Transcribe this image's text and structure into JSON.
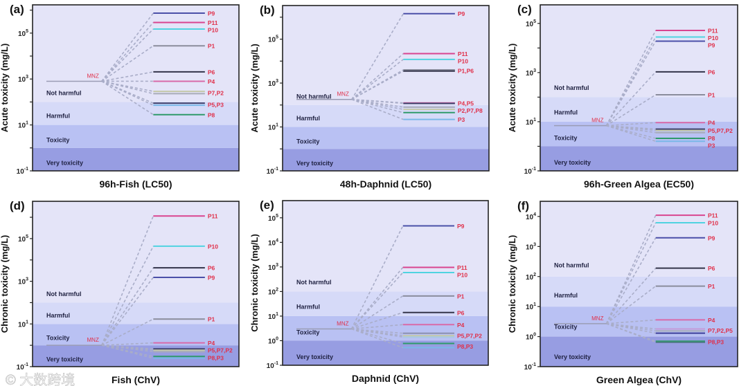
{
  "band_labels": [
    "Very toxicity",
    "Toxicity",
    "Harmful",
    "Not harmful"
  ],
  "band_colors": [
    "#979de2",
    "#b9c1f3",
    "#d6daf8",
    "#e4e4f8"
  ],
  "label_color": "#e0304a",
  "watermark": "大数跨境",
  "chart_data": [
    {
      "type": "line",
      "panel": "(a)",
      "title": "96h-Fish (LC50)",
      "ylabel": "Acute toxicity (mg/L)",
      "yscale": "log",
      "ylim": [
        0.1,
        1700000
      ],
      "ytick_exponents": [
        -1,
        1,
        3,
        5
      ],
      "band_thresholds": [
        1,
        10,
        100
      ],
      "parent": {
        "name": "MNZ",
        "value": 800
      },
      "products": [
        {
          "name": "P9",
          "value": 740000,
          "color": "#4a4fa8"
        },
        {
          "name": "P11",
          "value": 290000,
          "color": "#d9448f"
        },
        {
          "name": "P10",
          "value": 150000,
          "color": "#4fd3e0"
        },
        {
          "name": "P1",
          "value": 28000,
          "color": "#8a8c9c"
        },
        {
          "name": "P6",
          "value": 2050,
          "color": "#33344a"
        },
        {
          "name": "P4",
          "value": 800,
          "color": "#d96aa8"
        },
        {
          "name": "P7",
          "value": 290,
          "color": "#c4c8a8"
        },
        {
          "name": "P2",
          "value": 230,
          "color": "#a8acb8"
        },
        {
          "name": "P5",
          "value": 89,
          "color": "#3d3f6a"
        },
        {
          "name": "P3",
          "value": 72,
          "color": "#7ab8e8"
        },
        {
          "name": "P8",
          "value": 28,
          "color": "#2e9a6a"
        }
      ],
      "labels": [
        {
          "text": "P9",
          "value": 740000
        },
        {
          "text": "P11",
          "value": 290000
        },
        {
          "text": "P10",
          "value": 150000
        },
        {
          "text": "P1",
          "value": 28000
        },
        {
          "text": "P6",
          "value": 2050
        },
        {
          "text": "P4",
          "value": 800
        },
        {
          "text": "P7,P2",
          "value": 250
        },
        {
          "text": "P5,P3",
          "value": 78
        },
        {
          "text": "P8",
          "value": 28
        }
      ]
    },
    {
      "type": "line",
      "panel": "(b)",
      "title": "48h-Daphnid (LC50)",
      "ylabel": "Acute toxicity (mg/L)",
      "yscale": "log",
      "ylim": [
        0.1,
        3400000
      ],
      "ytick_exponents": [
        -1,
        1,
        3,
        5
      ],
      "band_thresholds": [
        1,
        10,
        100
      ],
      "parent": {
        "name": "MNZ",
        "value": 180
      },
      "products": [
        {
          "name": "P9",
          "value": 1450000,
          "color": "#4a4fa8"
        },
        {
          "name": "P11",
          "value": 22000,
          "color": "#d9448f"
        },
        {
          "name": "P10",
          "value": 12000,
          "color": "#4fd3e0"
        },
        {
          "name": "P1",
          "value": 4000,
          "color": "#8a8c9c"
        },
        {
          "name": "P6",
          "value": 3500,
          "color": "#33344a"
        },
        {
          "name": "P4",
          "value": 125,
          "color": "#d96aa8"
        },
        {
          "name": "P5",
          "value": 118,
          "color": "#3d3f6a"
        },
        {
          "name": "P2",
          "value": 80,
          "color": "#a8acb8"
        },
        {
          "name": "P7",
          "value": 63,
          "color": "#c4c8a8"
        },
        {
          "name": "P8",
          "value": 45,
          "color": "#2e9a6a"
        },
        {
          "name": "P3",
          "value": 22,
          "color": "#7ab8e8"
        }
      ],
      "labels": [
        {
          "text": "P9",
          "value": 1450000
        },
        {
          "text": "P11",
          "value": 22000
        },
        {
          "text": "P10",
          "value": 12000
        },
        {
          "text": "P1,P6",
          "value": 3700
        },
        {
          "text": "P4,P5",
          "value": 122
        },
        {
          "text": "P2,P7,P8",
          "value": 62
        },
        {
          "text": "P3",
          "value": 22
        }
      ]
    },
    {
      "type": "line",
      "panel": "(c)",
      "title": "96h-Green Algea (EC50)",
      "ylabel": "Acute toxicity (mg/L)",
      "yscale": "log",
      "ylim": [
        0.1,
        570000
      ],
      "ytick_exponents": [
        -1,
        1,
        3,
        5
      ],
      "band_thresholds": [
        1,
        10,
        100
      ],
      "parent": {
        "name": "MNZ",
        "value": 6.9
      },
      "products": [
        {
          "name": "P11",
          "value": 52000,
          "color": "#d9448f"
        },
        {
          "name": "P10",
          "value": 28000,
          "color": "#4fd3e0"
        },
        {
          "name": "P9",
          "value": 19000,
          "color": "#4a4fa8"
        },
        {
          "name": "P6",
          "value": 1070,
          "color": "#33344a"
        },
        {
          "name": "P1",
          "value": 125,
          "color": "#8a8c9c"
        },
        {
          "name": "P4",
          "value": 9.2,
          "color": "#d96aa8"
        },
        {
          "name": "P5",
          "value": 5.0,
          "color": "#3d3f6a"
        },
        {
          "name": "P7",
          "value": 4.4,
          "color": "#c4c8a8"
        },
        {
          "name": "P2",
          "value": 3.6,
          "color": "#a8acb8"
        },
        {
          "name": "P8",
          "value": 2.1,
          "color": "#2e9a6a"
        },
        {
          "name": "P3",
          "value": 1.6,
          "color": "#7ab8e8"
        }
      ],
      "labels": [
        {
          "text": "P11",
          "value": 52000
        },
        {
          "text": "P10",
          "value": 28000
        },
        {
          "text": "P9",
          "value": 17000
        },
        {
          "text": "P6",
          "value": 1070
        },
        {
          "text": "P1",
          "value": 125
        },
        {
          "text": "P4",
          "value": 9.2
        },
        {
          "text": "P5,P7,P2",
          "value": 4.4
        },
        {
          "text": "P8",
          "value": 2.2
        },
        {
          "text": "P3",
          "value": 1.5
        }
      ]
    },
    {
      "type": "line",
      "panel": "(d)",
      "title": "Fish (ChV)",
      "ylabel": "Chronic toxicity (mg/L)",
      "yscale": "log",
      "ylim": [
        0.1,
        5600000
      ],
      "ytick_exponents": [
        -1,
        1,
        3,
        5
      ],
      "band_thresholds": [
        1,
        10,
        100
      ],
      "parent": {
        "name": "MNZ",
        "value": 1.0
      },
      "products": [
        {
          "name": "P11",
          "value": 1150000,
          "color": "#d9448f"
        },
        {
          "name": "P10",
          "value": 44000,
          "color": "#4fd3e0"
        },
        {
          "name": "P6",
          "value": 4300,
          "color": "#33344a"
        },
        {
          "name": "P9",
          "value": 1520,
          "color": "#4a4fa8"
        },
        {
          "name": "P1",
          "value": 17,
          "color": "#8a8c9c"
        },
        {
          "name": "P4",
          "value": 1.3,
          "color": "#d96aa8"
        },
        {
          "name": "P5",
          "value": 0.68,
          "color": "#3d3f6a"
        },
        {
          "name": "P7",
          "value": 0.59,
          "color": "#c4c8a8"
        },
        {
          "name": "P2",
          "value": 0.5,
          "color": "#a8acb8"
        },
        {
          "name": "P8",
          "value": 0.3,
          "color": "#2e9a6a"
        },
        {
          "name": "P3",
          "value": 0.25,
          "color": "#7ab8e8"
        }
      ],
      "labels": [
        {
          "text": "P11",
          "value": 1150000
        },
        {
          "text": "P10",
          "value": 44000
        },
        {
          "text": "P6",
          "value": 4300
        },
        {
          "text": "P9",
          "value": 1520
        },
        {
          "text": "P1",
          "value": 17
        },
        {
          "text": "P4",
          "value": 1.3
        },
        {
          "text": "P5,P7,P2",
          "value": 0.62
        },
        {
          "text": "P8,P3",
          "value": 0.26
        }
      ]
    },
    {
      "type": "line",
      "panel": "(e)",
      "title": "Daphnid (ChV)",
      "ylabel": "Chronic toxicity (mg/L)",
      "yscale": "log",
      "ylim": [
        0.1,
        500000
      ],
      "ytick_exponents": [
        -1,
        0,
        1,
        2,
        3,
        4,
        5
      ],
      "band_thresholds": [
        1,
        10,
        100
      ],
      "parent": {
        "name": "MNZ",
        "value": 3.0
      },
      "products": [
        {
          "name": "P9",
          "value": 47000,
          "color": "#4a4fa8"
        },
        {
          "name": "P11",
          "value": 960,
          "color": "#d9448f"
        },
        {
          "name": "P10",
          "value": 590,
          "color": "#4fd3e0"
        },
        {
          "name": "P1",
          "value": 66,
          "color": "#8a8c9c"
        },
        {
          "name": "P6",
          "value": 14,
          "color": "#33344a"
        },
        {
          "name": "P4",
          "value": 4.5,
          "color": "#d96aa8"
        },
        {
          "name": "P5",
          "value": 2.0,
          "color": "#8c90b0"
        },
        {
          "name": "P7",
          "value": 1.6,
          "color": "#c4c8a8"
        },
        {
          "name": "P2",
          "value": 1.4,
          "color": "#a8c8e0"
        },
        {
          "name": "P8",
          "value": 0.77,
          "color": "#2e9a6a"
        },
        {
          "name": "P3",
          "value": 0.52,
          "color": "#7ab8e8"
        }
      ],
      "labels": [
        {
          "text": "P9",
          "value": 47000
        },
        {
          "text": "P11",
          "value": 960
        },
        {
          "text": "P10",
          "value": 590
        },
        {
          "text": "P1",
          "value": 66
        },
        {
          "text": "P6",
          "value": 14
        },
        {
          "text": "P4",
          "value": 4.5
        },
        {
          "text": "P5,P7,P2",
          "value": 1.6
        },
        {
          "text": "P8,P3",
          "value": 0.6
        }
      ]
    },
    {
      "type": "line",
      "panel": "(f)",
      "title": "Green Algea (ChV)",
      "ylabel": "Chronic toxicity (mg/L)",
      "yscale": "log",
      "ylim": [
        0.1,
        32000
      ],
      "ytick_exponents": [
        -1,
        0,
        1,
        2,
        3,
        4
      ],
      "band_thresholds": [
        1,
        10,
        100
      ],
      "parent": {
        "name": "MNZ",
        "value": 2.7
      },
      "products": [
        {
          "name": "P11",
          "value": 11000,
          "color": "#d9448f"
        },
        {
          "name": "P10",
          "value": 6200,
          "color": "#4fd3e0"
        },
        {
          "name": "P9",
          "value": 1950,
          "color": "#4a4fa8"
        },
        {
          "name": "P6",
          "value": 190,
          "color": "#33344a"
        },
        {
          "name": "P1",
          "value": 48,
          "color": "#8a8c9c"
        },
        {
          "name": "P4",
          "value": 3.6,
          "color": "#d96aa8"
        },
        {
          "name": "P7",
          "value": 1.8,
          "color": "#c49ad8"
        },
        {
          "name": "P2",
          "value": 1.55,
          "color": "#a8acb8"
        },
        {
          "name": "P5",
          "value": 1.3,
          "color": "#3d3f9a"
        },
        {
          "name": "P8",
          "value": 0.7,
          "color": "#2e9a6a"
        },
        {
          "name": "P3",
          "value": 0.65,
          "color": "#4a7a80"
        }
      ],
      "labels": [
        {
          "text": "P11",
          "value": 11000
        },
        {
          "text": "P10",
          "value": 6200
        },
        {
          "text": "P9",
          "value": 1950
        },
        {
          "text": "P6",
          "value": 190
        },
        {
          "text": "P1",
          "value": 48
        },
        {
          "text": "P4",
          "value": 3.6
        },
        {
          "text": "P7,P2,P5",
          "value": 1.6
        },
        {
          "text": "P8,P3",
          "value": 0.67
        }
      ]
    }
  ]
}
